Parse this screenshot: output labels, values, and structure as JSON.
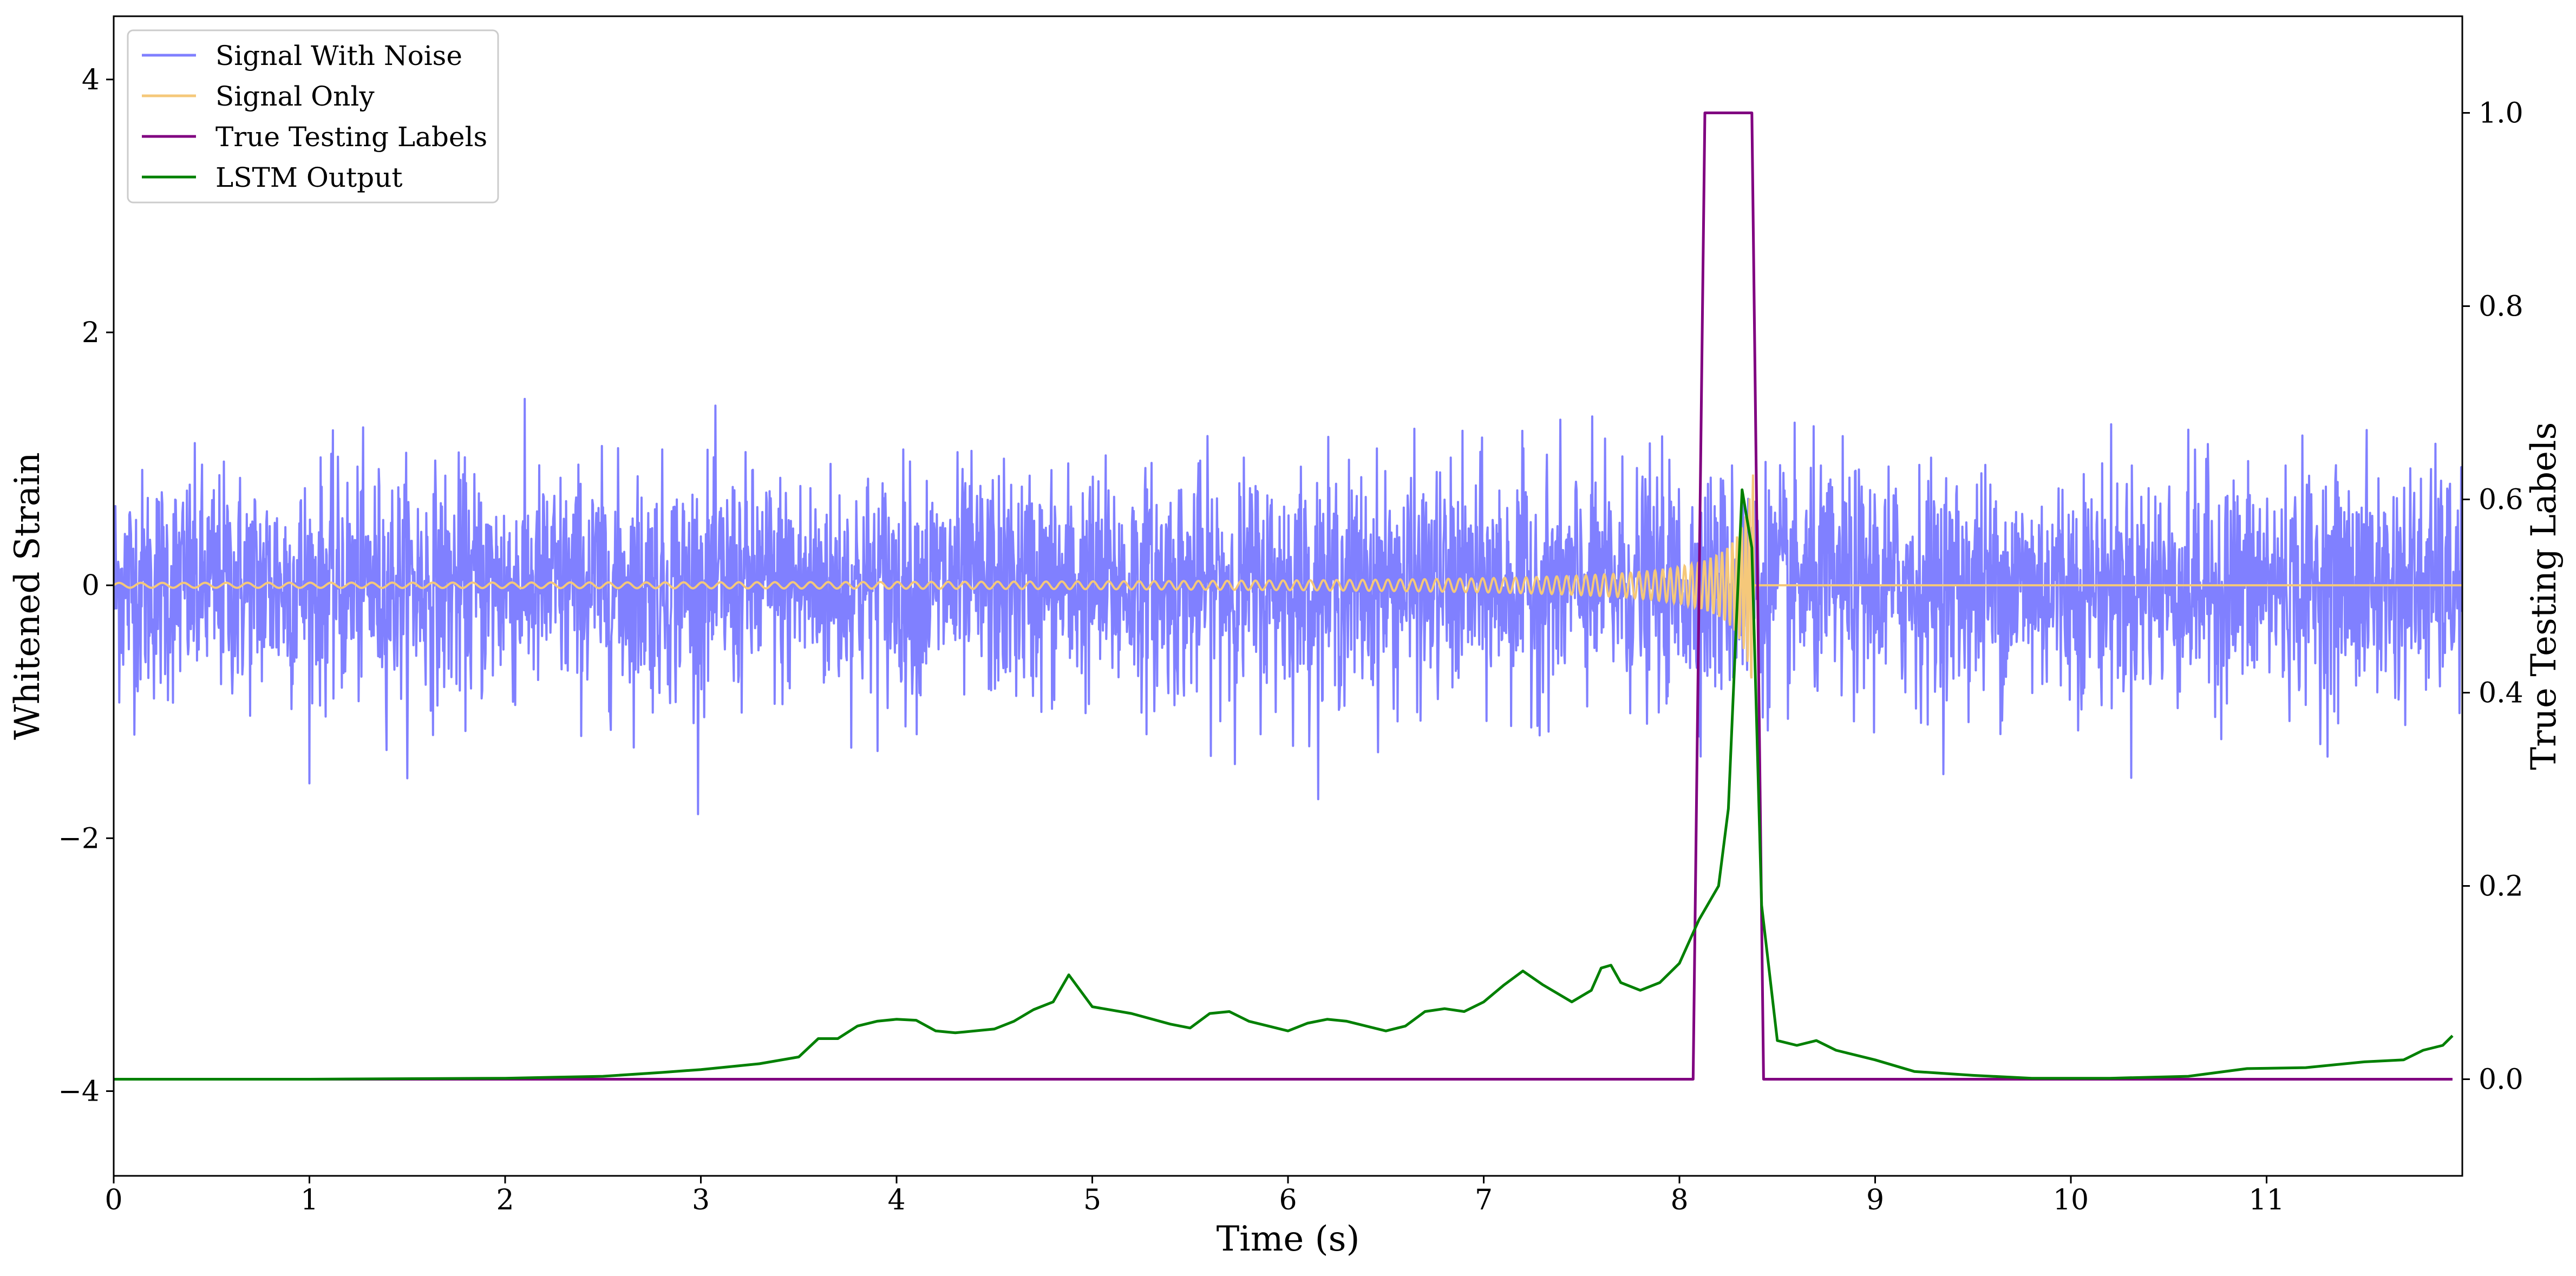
{
  "chart_data": {
    "type": "line",
    "xlabel": "Time (s)",
    "ylabel_left": "Whitened Strain",
    "ylabel_right": "True Testing Labels",
    "xlim": [
      0,
      12
    ],
    "ylim_left": [
      -4.67,
      4.5
    ],
    "ylim_right": [
      -0.1,
      1.1
    ],
    "x_ticks": [
      0,
      1,
      2,
      3,
      4,
      5,
      6,
      7,
      8,
      9,
      10,
      11
    ],
    "x_tick_labels": [
      "0",
      "1",
      "2",
      "3",
      "4",
      "5",
      "6",
      "7",
      "8",
      "9",
      "10",
      "11"
    ],
    "y_left_ticks": [
      -4,
      -2,
      0,
      2,
      4
    ],
    "y_left_tick_labels": [
      "−4",
      "−2",
      "0",
      "2",
      "4"
    ],
    "y_right_ticks": [
      0.0,
      0.2,
      0.4,
      0.6,
      0.8,
      1.0
    ],
    "y_right_tick_labels": [
      "0.0",
      "0.2",
      "0.4",
      "0.6",
      "0.8",
      "1.0"
    ],
    "legend_placement": "upper-left",
    "grid": false,
    "series": [
      {
        "name": "Signal With Noise",
        "axis": "left",
        "color": "#8080ff",
        "style": "noise",
        "std": 0.45,
        "range": [
          -1.95,
          1.98
        ],
        "x_range": [
          0,
          12
        ]
      },
      {
        "name": "Signal Only",
        "axis": "left",
        "color": "#f5c87a",
        "style": "chirp",
        "amplitude_start": 0.01,
        "amplitude_peak": 0.95,
        "t_start": 0,
        "t_merge": 8.38,
        "x_range": [
          0,
          12
        ]
      },
      {
        "name": "True Testing Labels",
        "axis": "right",
        "color": "#800080",
        "style": "line",
        "points": [
          [
            0,
            0
          ],
          [
            8.07,
            0
          ],
          [
            8.13,
            1
          ],
          [
            8.37,
            1
          ],
          [
            8.43,
            0
          ],
          [
            11.95,
            0
          ]
        ]
      },
      {
        "name": "LSTM Output",
        "axis": "right",
        "color": "#008000",
        "style": "line",
        "points": [
          [
            0,
            0.0
          ],
          [
            1.0,
            0.0
          ],
          [
            2.0,
            0.001
          ],
          [
            2.5,
            0.003
          ],
          [
            2.8,
            0.007
          ],
          [
            3.0,
            0.01
          ],
          [
            3.3,
            0.016
          ],
          [
            3.5,
            0.023
          ],
          [
            3.6,
            0.042
          ],
          [
            3.7,
            0.042
          ],
          [
            3.8,
            0.055
          ],
          [
            3.9,
            0.06
          ],
          [
            4.0,
            0.062
          ],
          [
            4.1,
            0.061
          ],
          [
            4.2,
            0.05
          ],
          [
            4.3,
            0.048
          ],
          [
            4.5,
            0.052
          ],
          [
            4.6,
            0.06
          ],
          [
            4.7,
            0.072
          ],
          [
            4.8,
            0.08
          ],
          [
            4.88,
            0.108
          ],
          [
            5.0,
            0.075
          ],
          [
            5.2,
            0.068
          ],
          [
            5.4,
            0.057
          ],
          [
            5.5,
            0.053
          ],
          [
            5.6,
            0.068
          ],
          [
            5.7,
            0.07
          ],
          [
            5.8,
            0.06
          ],
          [
            5.9,
            0.055
          ],
          [
            6.0,
            0.05
          ],
          [
            6.1,
            0.058
          ],
          [
            6.2,
            0.062
          ],
          [
            6.3,
            0.06
          ],
          [
            6.5,
            0.05
          ],
          [
            6.6,
            0.055
          ],
          [
            6.7,
            0.07
          ],
          [
            6.8,
            0.073
          ],
          [
            6.9,
            0.07
          ],
          [
            7.0,
            0.08
          ],
          [
            7.1,
            0.097
          ],
          [
            7.2,
            0.112
          ],
          [
            7.3,
            0.098
          ],
          [
            7.45,
            0.08
          ],
          [
            7.55,
            0.092
          ],
          [
            7.6,
            0.115
          ],
          [
            7.65,
            0.118
          ],
          [
            7.7,
            0.1
          ],
          [
            7.8,
            0.092
          ],
          [
            7.9,
            0.1
          ],
          [
            8.0,
            0.12
          ],
          [
            8.1,
            0.165
          ],
          [
            8.2,
            0.2
          ],
          [
            8.25,
            0.28
          ],
          [
            8.32,
            0.61
          ],
          [
            8.37,
            0.55
          ],
          [
            8.42,
            0.18
          ],
          [
            8.5,
            0.04
          ],
          [
            8.6,
            0.035
          ],
          [
            8.7,
            0.04
          ],
          [
            8.8,
            0.03
          ],
          [
            9.0,
            0.02
          ],
          [
            9.2,
            0.008
          ],
          [
            9.5,
            0.004
          ],
          [
            9.8,
            0.001
          ],
          [
            10.2,
            0.001
          ],
          [
            10.6,
            0.003
          ],
          [
            10.9,
            0.011
          ],
          [
            11.2,
            0.012
          ],
          [
            11.5,
            0.018
          ],
          [
            11.7,
            0.02
          ],
          [
            11.8,
            0.03
          ],
          [
            11.9,
            0.035
          ],
          [
            11.95,
            0.045
          ]
        ]
      }
    ]
  },
  "legend": {
    "items": [
      {
        "label": "Signal With Noise",
        "color": "#8080ff"
      },
      {
        "label": "Signal Only",
        "color": "#f5c87a"
      },
      {
        "label": "True Testing Labels",
        "color": "#800080"
      },
      {
        "label": "LSTM Output",
        "color": "#008000"
      }
    ]
  }
}
